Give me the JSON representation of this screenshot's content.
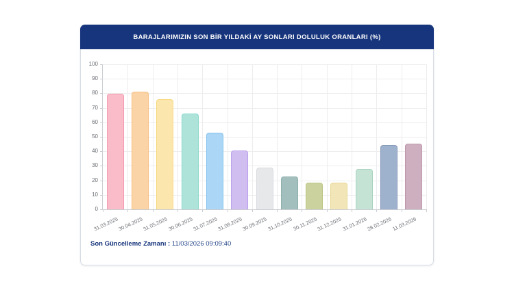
{
  "header": {
    "title": "BARAJLARIMIZIN SON BİR YILDAKİ AY SONLARI DOLULUK ORANLARI (%)"
  },
  "footer": {
    "label": "Son Güncelleme Zamanı :",
    "value": "11/03/2026 09:09:40"
  },
  "colors": {
    "header_bg": "#17357c",
    "header_text": "#ffffff",
    "footer_label": "#17357c",
    "footer_value": "#2a4a8c",
    "card_border": "#d8dde3",
    "axis_line": "#c9ccd1",
    "gridline": "#ededee",
    "tick_text": "#6b6e74"
  },
  "chart_data": {
    "type": "bar",
    "title": "BARAJLARIMIZIN SON BİR YILDAKİ AY SONLARI DOLULUK ORANLARI (%)",
    "categories": [
      "31.03.2025",
      "30.04.2025",
      "31.05.2025",
      "30.06.2025",
      "31.07.2025",
      "31.08.2025",
      "30.09.2025",
      "31.10.2025",
      "30.11.2025",
      "31.12.2025",
      "31.01.2026",
      "28.02.2026",
      "11.03.2026"
    ],
    "values": [
      79.5,
      80.9,
      76.1,
      65.9,
      52.9,
      40.5,
      28.6,
      22.6,
      18.2,
      18.3,
      27.9,
      44.3,
      45.3
    ],
    "bar_fills": [
      "#f9bcc8",
      "#fad4a6",
      "#fbe6ae",
      "#aee3da",
      "#abd6f5",
      "#d0bef1",
      "#e6e8ea",
      "#a3bfbd",
      "#ccd29e",
      "#f2e5b8",
      "#c5e3d5",
      "#9fb2cd",
      "#ceafbf"
    ],
    "bar_borders": [
      "#f59cb0",
      "#f6be7e",
      "#f8d87f",
      "#86d8cb",
      "#86c2ef",
      "#b9a0ec",
      "#d8dbde",
      "#8db0ad",
      "#bcc483",
      "#e8d692",
      "#a8d4bf",
      "#8599ba",
      "#bd97ab"
    ],
    "xlabel": "",
    "ylabel": "",
    "ylim": [
      0,
      100
    ],
    "ytick_step": 10,
    "grid": true,
    "legend": "none"
  }
}
